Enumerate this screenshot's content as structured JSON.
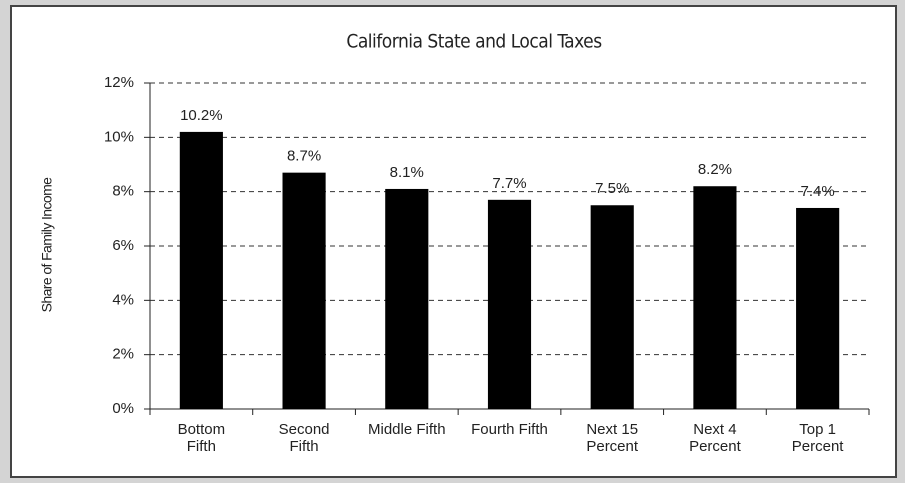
{
  "chart_data": {
    "type": "bar",
    "title": "California State and Local Taxes",
    "y_label": "Share of Family Income",
    "categories": [
      "Bottom Fifth",
      "Second Fifth",
      "Middle Fifth",
      "Fourth Fifth",
      "Next 15 Percent",
      "Next 4 Percent",
      "Top 1 Percent"
    ],
    "values": [
      10.2,
      8.7,
      8.1,
      7.7,
      7.5,
      8.2,
      7.4
    ],
    "value_labels": [
      "10.2%",
      "8.7%",
      "8.1%",
      "7.7%",
      "7.5%",
      "8.2%",
      "7.4%"
    ],
    "color": "#000000",
    "ylim": [
      0,
      12
    ],
    "yticks": [
      {
        "value": 0,
        "label": "0%"
      },
      {
        "value": 2,
        "label": "2%"
      },
      {
        "value": 4,
        "label": "4%"
      },
      {
        "value": 6,
        "label": "6%"
      },
      {
        "value": 8,
        "label": "8%"
      },
      {
        "value": 10,
        "label": "10%"
      },
      {
        "value": 12,
        "label": "12%"
      }
    ],
    "grid": true
  }
}
